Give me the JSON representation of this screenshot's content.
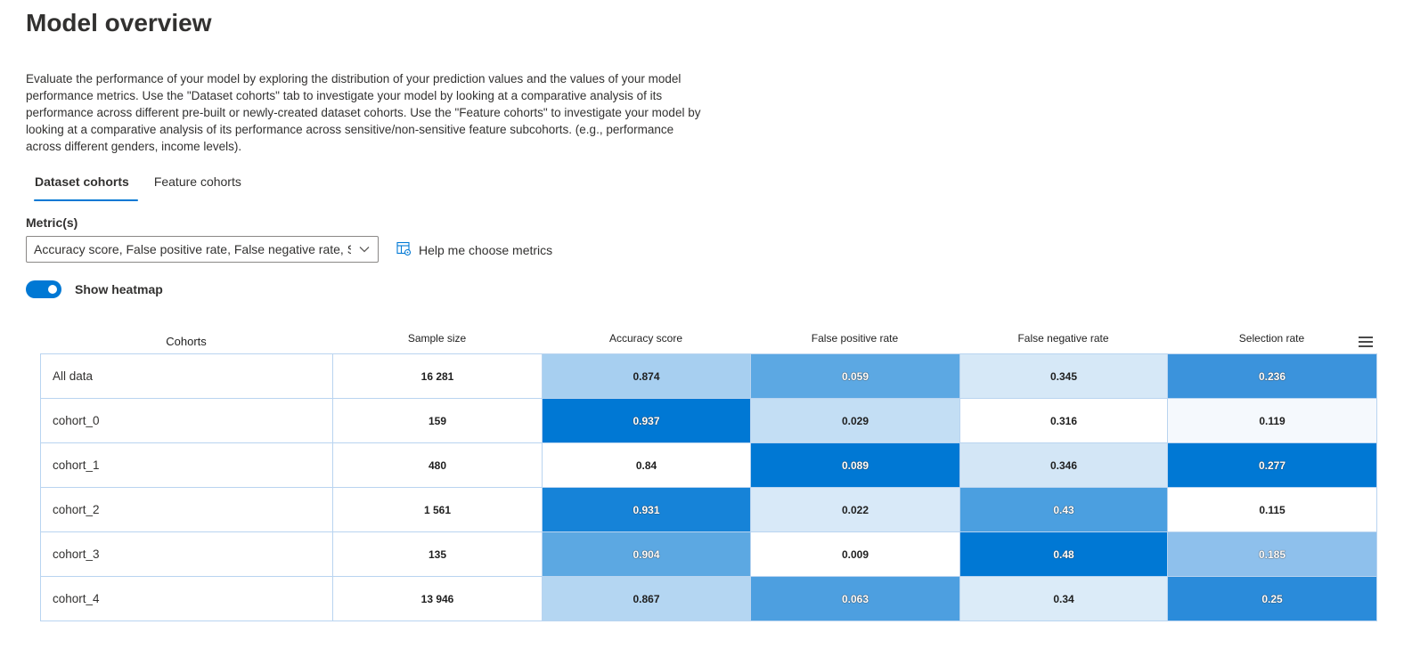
{
  "page": {
    "title": "Model overview",
    "description": "Evaluate the performance of your model by exploring the distribution of your prediction values and the values of your model performance metrics. Use the \"Dataset cohorts\" tab to investigate your model by looking at a comparative analysis of its performance across different pre-built or newly-created dataset cohorts. Use the \"Feature cohorts\" to investigate your model by looking at a comparative analysis of its performance across sensitive/non-sensitive feature subcohorts. (e.g., performance across different genders, income levels)."
  },
  "tabs": [
    {
      "label": "Dataset cohorts",
      "selected": true
    },
    {
      "label": "Feature cohorts",
      "selected": false
    }
  ],
  "metrics": {
    "label": "Metric(s)",
    "selected_value": "Accuracy score, False positive rate, False negative rate, S...",
    "help_link": "Help me choose metrics"
  },
  "heatmap_toggle": {
    "label": "Show heatmap",
    "on": true
  },
  "table": {
    "headers": [
      "Cohorts",
      "Sample size",
      "Accuracy score",
      "False positive rate",
      "False negative rate",
      "Selection rate"
    ],
    "rows": [
      {
        "cells": [
          "All data",
          "16 281",
          "0.874",
          "0.059",
          "0.345",
          "0.236"
        ]
      },
      {
        "cells": [
          "cohort_0",
          "159",
          "0.937",
          "0.029",
          "0.316",
          "0.119"
        ]
      },
      {
        "cells": [
          "cohort_1",
          "480",
          "0.84",
          "0.089",
          "0.346",
          "0.277"
        ]
      },
      {
        "cells": [
          "cohort_2",
          "1 561",
          "0.931",
          "0.022",
          "0.43",
          "0.115"
        ]
      },
      {
        "cells": [
          "cohort_3",
          "135",
          "0.904",
          "0.009",
          "0.48",
          "0.185"
        ]
      },
      {
        "cells": [
          "cohort_4",
          "13 946",
          "0.867",
          "0.063",
          "0.34",
          "0.25"
        ]
      }
    ],
    "cell_colors": [
      [
        "#ffffff",
        "#ffffff",
        "#a7cff0",
        "#5ca8e3",
        "#d6e8f7",
        "#3b93dc"
      ],
      [
        "#ffffff",
        "#ffffff",
        "#0078d4",
        "#c3def4",
        "#ffffff",
        "#f5f9fd"
      ],
      [
        "#ffffff",
        "#ffffff",
        "#ffffff",
        "#0078d4",
        "#d3e6f6",
        "#0078d4"
      ],
      [
        "#ffffff",
        "#ffffff",
        "#1683d8",
        "#d8e9f8",
        "#4b9fe0",
        "#ffffff"
      ],
      [
        "#ffffff",
        "#ffffff",
        "#5ca8e2",
        "#ffffff",
        "#0078d4",
        "#8ec0ec"
      ],
      [
        "#ffffff",
        "#ffffff",
        "#b4d6f2",
        "#4d9fe0",
        "#dbebf8",
        "#2a8bda"
      ]
    ],
    "dark_text_cells": [
      [
        false,
        false,
        false,
        true,
        false,
        true
      ],
      [
        false,
        false,
        true,
        false,
        false,
        false
      ],
      [
        false,
        false,
        false,
        true,
        false,
        true
      ],
      [
        false,
        false,
        true,
        false,
        true,
        false
      ],
      [
        false,
        false,
        true,
        false,
        true,
        true
      ],
      [
        false,
        false,
        false,
        true,
        false,
        true
      ]
    ]
  },
  "icons": {
    "dropdown": "chevron-down-icon",
    "help": "table-settings-icon",
    "menu": "hamburger-menu-icon"
  },
  "colors": {
    "accent": "#0078d4",
    "text": "#323130"
  }
}
